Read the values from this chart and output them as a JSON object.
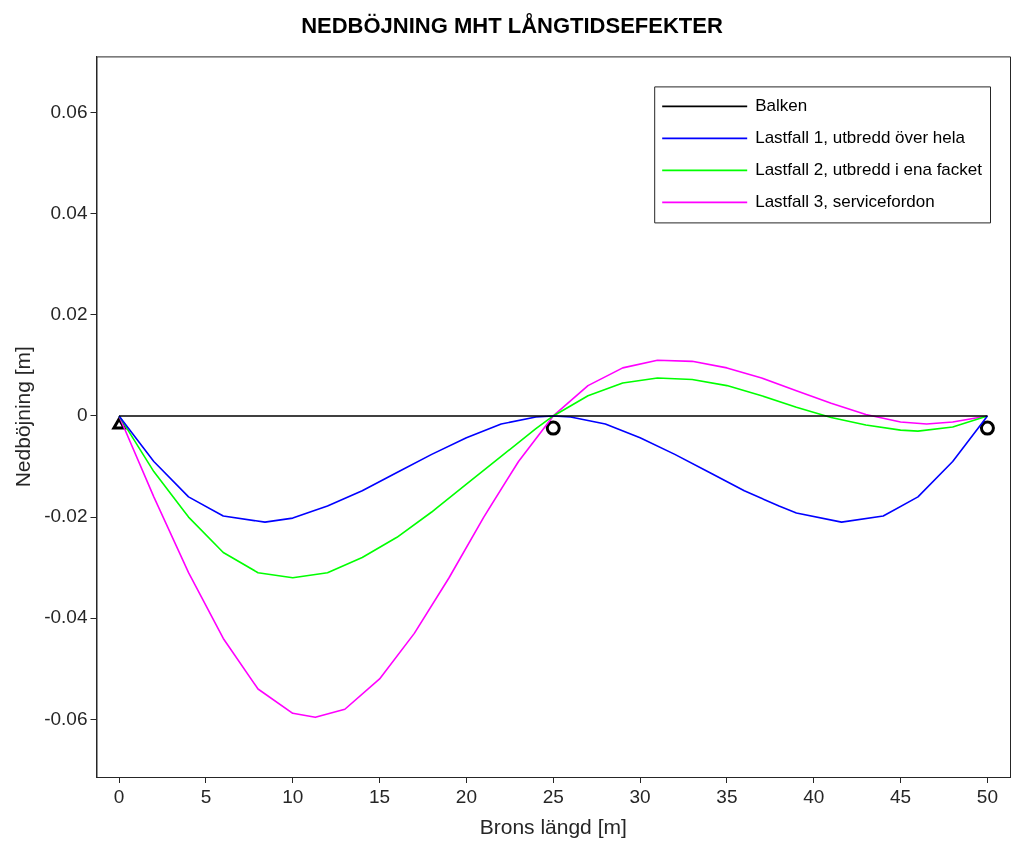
{
  "chart_data": {
    "type": "line",
    "title": "NEDBÖJNING MHT LÅNGTIDSEFEKTER",
    "xlabel": "Brons längd [m]",
    "ylabel": "Nedböjning [m]",
    "xlim": [
      -1.3,
      51.3
    ],
    "ylim": [
      -0.0714,
      0.0711
    ],
    "xticks": [
      0,
      5,
      10,
      15,
      20,
      25,
      30,
      35,
      40,
      45,
      50
    ],
    "yticks": [
      -0.06,
      -0.04,
      -0.02,
      0,
      0.02,
      0.04,
      0.06
    ],
    "grid": false,
    "legend": "top right",
    "marker": "none",
    "series": [
      {
        "name": "Balken",
        "color": "#000000",
        "x": [
          0,
          50
        ],
        "values": [
          0,
          0
        ]
      },
      {
        "name": "Lastfall 1, utbredd över hela",
        "color": "#0000ff",
        "x": [
          0,
          2,
          4,
          6,
          8.4,
          10,
          12,
          14,
          16,
          18,
          20,
          22,
          24,
          25,
          26,
          28,
          30,
          32,
          34,
          36,
          38,
          39,
          41.6,
          44,
          46,
          48,
          50
        ],
        "values": [
          0,
          -0.009,
          -0.016,
          -0.0198,
          -0.021,
          -0.0202,
          -0.0178,
          -0.0148,
          -0.0112,
          -0.0076,
          -0.0043,
          -0.0016,
          -0.0002,
          0,
          -0.0002,
          -0.0016,
          -0.0043,
          -0.0076,
          -0.0112,
          -0.0148,
          -0.0178,
          -0.0192,
          -0.021,
          -0.0198,
          -0.016,
          -0.009,
          0
        ]
      },
      {
        "name": "Lastfall 2, utbredd i ena facket",
        "color": "#00ff00",
        "x": [
          0,
          2,
          4,
          6,
          8,
          10,
          12,
          14,
          16,
          18,
          20,
          22,
          24,
          25,
          27,
          29,
          31,
          33,
          35,
          37,
          39,
          41,
          43,
          45,
          46,
          48,
          50
        ],
        "values": [
          0,
          -0.011,
          -0.02,
          -0.027,
          -0.031,
          -0.032,
          -0.031,
          -0.028,
          -0.024,
          -0.019,
          -0.0135,
          -0.008,
          -0.0025,
          0,
          0.004,
          0.0065,
          0.0075,
          0.0072,
          0.006,
          0.004,
          0.0017,
          -0.0003,
          -0.0018,
          -0.0028,
          -0.003,
          -0.0022,
          0
        ]
      },
      {
        "name": "Lastfall 3, servicefordon",
        "color": "#ff00ff",
        "x": [
          0,
          2,
          4,
          6,
          8,
          10,
          11.3,
          13,
          15,
          17,
          19,
          21,
          23,
          25,
          27,
          29,
          31,
          33,
          35,
          37,
          39,
          41,
          43,
          45,
          46.5,
          48,
          50
        ],
        "values": [
          0,
          -0.016,
          -0.031,
          -0.044,
          -0.054,
          -0.0588,
          -0.0596,
          -0.058,
          -0.052,
          -0.043,
          -0.032,
          -0.02,
          -0.009,
          0,
          0.006,
          0.0095,
          0.011,
          0.0108,
          0.0095,
          0.0075,
          0.005,
          0.0025,
          0.0003,
          -0.0012,
          -0.0016,
          -0.0012,
          0
        ]
      },
      {
        "type": "scatter",
        "marker": "triangle",
        "color": "#000000",
        "x": [
          0
        ],
        "values": [
          -0.0018
        ]
      },
      {
        "type": "scatter",
        "marker": "circle",
        "color": "#000000",
        "x": [
          25,
          50
        ],
        "values": [
          -0.0024,
          -0.0024
        ]
      }
    ]
  }
}
